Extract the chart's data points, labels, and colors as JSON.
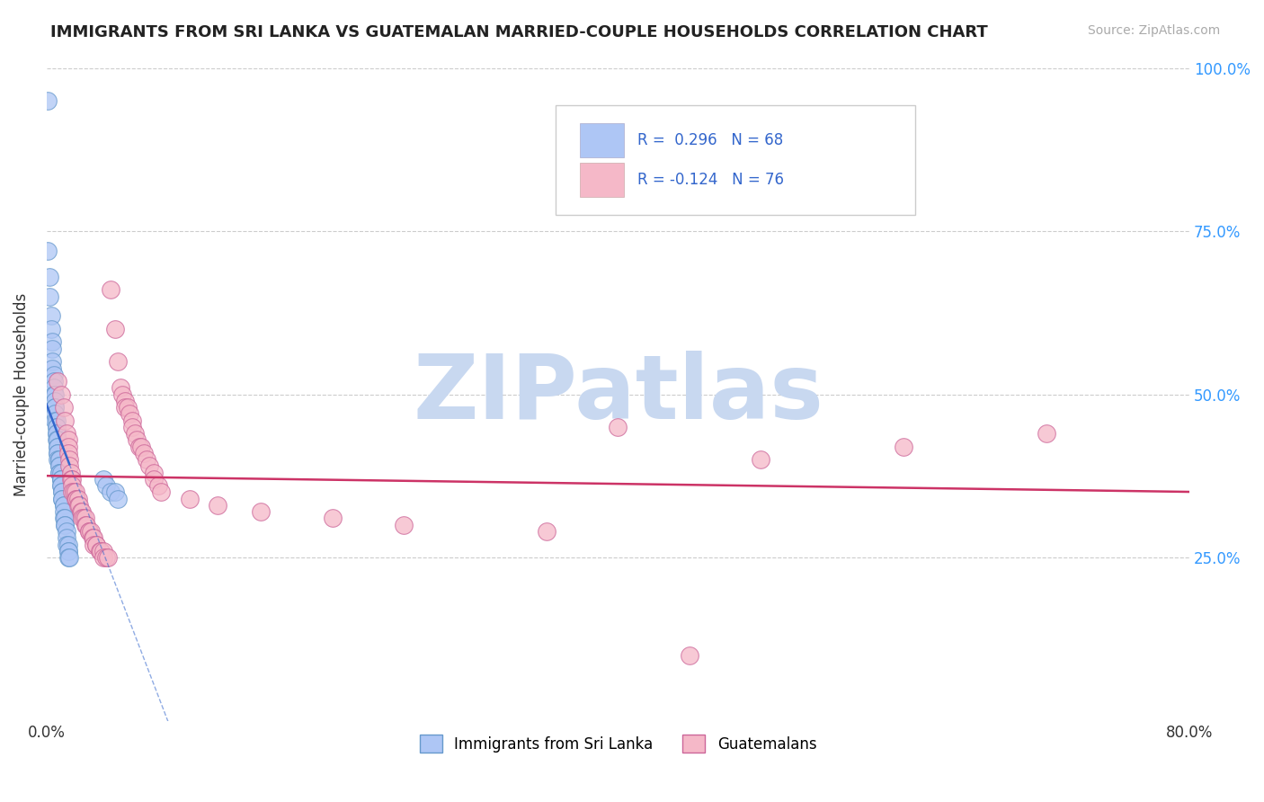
{
  "title": "IMMIGRANTS FROM SRI LANKA VS GUATEMALAN MARRIED-COUPLE HOUSEHOLDS CORRELATION CHART",
  "source": "Source: ZipAtlas.com",
  "ylabel": "Married-couple Households",
  "series1_color": "#aec6f5",
  "series1_edge": "#6699cc",
  "series2_color": "#f5b8c8",
  "series2_edge": "#cc6699",
  "trend1_color": "#3366cc",
  "trend2_color": "#cc3366",
  "watermark": "ZIPatlas",
  "watermark_color": "#c8d8f0",
  "grid_color": "#cccccc",
  "bg_color": "#ffffff",
  "right_label_color": "#3399ff",
  "xlim": [
    0.0,
    0.8
  ],
  "ylim": [
    0.0,
    1.0
  ],
  "blue_points": [
    [
      0.001,
      0.95
    ],
    [
      0.001,
      0.72
    ],
    [
      0.002,
      0.68
    ],
    [
      0.002,
      0.65
    ],
    [
      0.003,
      0.62
    ],
    [
      0.003,
      0.6
    ],
    [
      0.004,
      0.58
    ],
    [
      0.004,
      0.57
    ],
    [
      0.004,
      0.55
    ],
    [
      0.004,
      0.54
    ],
    [
      0.005,
      0.53
    ],
    [
      0.005,
      0.52
    ],
    [
      0.005,
      0.51
    ],
    [
      0.005,
      0.5
    ],
    [
      0.006,
      0.5
    ],
    [
      0.006,
      0.49
    ],
    [
      0.006,
      0.48
    ],
    [
      0.006,
      0.48
    ],
    [
      0.006,
      0.47
    ],
    [
      0.006,
      0.46
    ],
    [
      0.007,
      0.46
    ],
    [
      0.007,
      0.45
    ],
    [
      0.007,
      0.45
    ],
    [
      0.007,
      0.44
    ],
    [
      0.007,
      0.44
    ],
    [
      0.007,
      0.43
    ],
    [
      0.008,
      0.43
    ],
    [
      0.008,
      0.42
    ],
    [
      0.008,
      0.42
    ],
    [
      0.008,
      0.41
    ],
    [
      0.008,
      0.41
    ],
    [
      0.008,
      0.4
    ],
    [
      0.009,
      0.4
    ],
    [
      0.009,
      0.4
    ],
    [
      0.009,
      0.39
    ],
    [
      0.009,
      0.39
    ],
    [
      0.009,
      0.38
    ],
    [
      0.009,
      0.38
    ],
    [
      0.01,
      0.38
    ],
    [
      0.01,
      0.37
    ],
    [
      0.01,
      0.37
    ],
    [
      0.01,
      0.37
    ],
    [
      0.01,
      0.36
    ],
    [
      0.01,
      0.36
    ],
    [
      0.011,
      0.35
    ],
    [
      0.011,
      0.35
    ],
    [
      0.011,
      0.34
    ],
    [
      0.011,
      0.34
    ],
    [
      0.012,
      0.33
    ],
    [
      0.012,
      0.33
    ],
    [
      0.012,
      0.32
    ],
    [
      0.012,
      0.31
    ],
    [
      0.013,
      0.31
    ],
    [
      0.013,
      0.3
    ],
    [
      0.013,
      0.3
    ],
    [
      0.014,
      0.29
    ],
    [
      0.014,
      0.28
    ],
    [
      0.014,
      0.27
    ],
    [
      0.015,
      0.27
    ],
    [
      0.015,
      0.26
    ],
    [
      0.015,
      0.26
    ],
    [
      0.015,
      0.25
    ],
    [
      0.016,
      0.25
    ],
    [
      0.04,
      0.37
    ],
    [
      0.042,
      0.36
    ],
    [
      0.045,
      0.35
    ],
    [
      0.048,
      0.35
    ],
    [
      0.05,
      0.34
    ]
  ],
  "pink_points": [
    [
      0.008,
      0.52
    ],
    [
      0.01,
      0.5
    ],
    [
      0.012,
      0.48
    ],
    [
      0.013,
      0.46
    ],
    [
      0.014,
      0.44
    ],
    [
      0.015,
      0.43
    ],
    [
      0.015,
      0.42
    ],
    [
      0.015,
      0.41
    ],
    [
      0.016,
      0.4
    ],
    [
      0.016,
      0.39
    ],
    [
      0.017,
      0.38
    ],
    [
      0.017,
      0.37
    ],
    [
      0.018,
      0.37
    ],
    [
      0.018,
      0.36
    ],
    [
      0.018,
      0.35
    ],
    [
      0.019,
      0.35
    ],
    [
      0.02,
      0.35
    ],
    [
      0.02,
      0.34
    ],
    [
      0.021,
      0.34
    ],
    [
      0.022,
      0.34
    ],
    [
      0.022,
      0.33
    ],
    [
      0.023,
      0.33
    ],
    [
      0.024,
      0.32
    ],
    [
      0.025,
      0.32
    ],
    [
      0.025,
      0.31
    ],
    [
      0.026,
      0.31
    ],
    [
      0.027,
      0.31
    ],
    [
      0.027,
      0.3
    ],
    [
      0.028,
      0.3
    ],
    [
      0.03,
      0.29
    ],
    [
      0.03,
      0.29
    ],
    [
      0.031,
      0.29
    ],
    [
      0.032,
      0.28
    ],
    [
      0.033,
      0.28
    ],
    [
      0.033,
      0.27
    ],
    [
      0.035,
      0.27
    ],
    [
      0.035,
      0.27
    ],
    [
      0.037,
      0.26
    ],
    [
      0.038,
      0.26
    ],
    [
      0.04,
      0.26
    ],
    [
      0.04,
      0.25
    ],
    [
      0.042,
      0.25
    ],
    [
      0.043,
      0.25
    ],
    [
      0.045,
      0.66
    ],
    [
      0.048,
      0.6
    ],
    [
      0.05,
      0.55
    ],
    [
      0.052,
      0.51
    ],
    [
      0.053,
      0.5
    ],
    [
      0.055,
      0.49
    ],
    [
      0.055,
      0.48
    ],
    [
      0.057,
      0.48
    ],
    [
      0.058,
      0.47
    ],
    [
      0.06,
      0.46
    ],
    [
      0.06,
      0.45
    ],
    [
      0.062,
      0.44
    ],
    [
      0.063,
      0.43
    ],
    [
      0.065,
      0.42
    ],
    [
      0.066,
      0.42
    ],
    [
      0.068,
      0.41
    ],
    [
      0.07,
      0.4
    ],
    [
      0.072,
      0.39
    ],
    [
      0.075,
      0.38
    ],
    [
      0.075,
      0.37
    ],
    [
      0.078,
      0.36
    ],
    [
      0.08,
      0.35
    ],
    [
      0.1,
      0.34
    ],
    [
      0.12,
      0.33
    ],
    [
      0.15,
      0.32
    ],
    [
      0.2,
      0.31
    ],
    [
      0.25,
      0.3
    ],
    [
      0.35,
      0.29
    ],
    [
      0.4,
      0.45
    ],
    [
      0.45,
      0.1
    ],
    [
      0.5,
      0.4
    ],
    [
      0.6,
      0.42
    ],
    [
      0.7,
      0.44
    ]
  ]
}
